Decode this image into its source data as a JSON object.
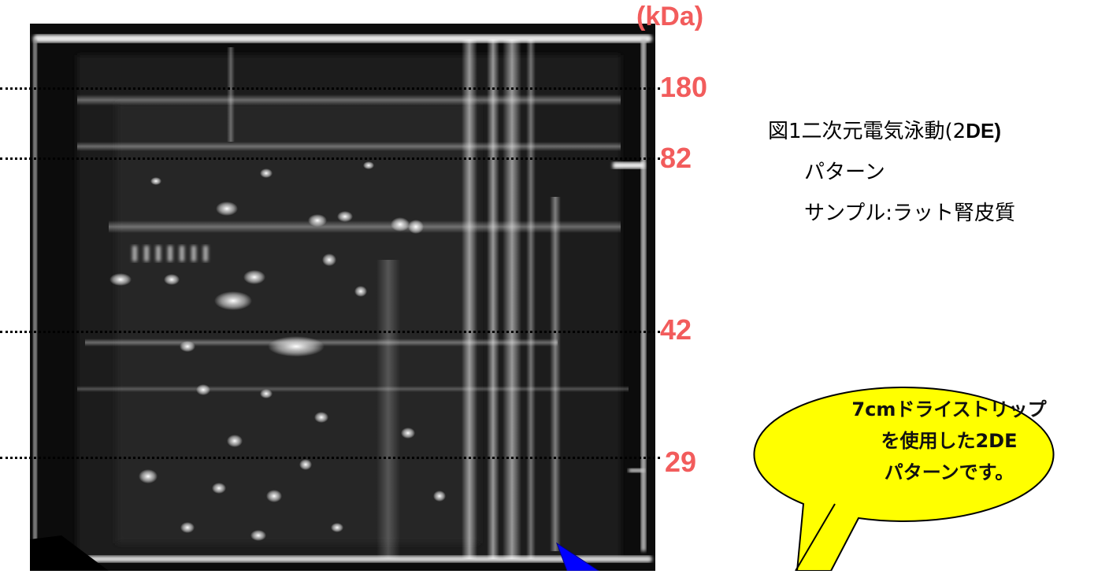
{
  "gel": {
    "unit_label": "(kDa)",
    "markers": [
      {
        "label": "180"
      },
      {
        "label": "82"
      },
      {
        "label": "42"
      },
      {
        "label": "29"
      }
    ]
  },
  "caption": {
    "line1_prefix": "図1二次元電気泳動(2",
    "line1_bold": "DE)",
    "line2": "パターン",
    "line3": "サンプル:ラット腎皮質"
  },
  "callout": {
    "lines": [
      "7cmドライストリップ",
      "を使用した2DE",
      "パターンです。"
    ],
    "fill_color": "#ffff00"
  },
  "arrow_color": "#0000ff"
}
